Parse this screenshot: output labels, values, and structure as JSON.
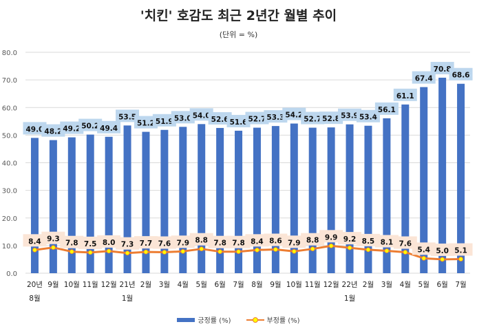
{
  "chart_data": {
    "type": "bar",
    "title": "'치킨' 호감도 최근 2년간 월별 추이",
    "subtitle": "(단위 = %)",
    "categories": [
      [
        "20년",
        "8월"
      ],
      [
        "9월"
      ],
      [
        "10월"
      ],
      [
        "11월"
      ],
      [
        "12월"
      ],
      [
        "21년",
        "1월"
      ],
      [
        "2월"
      ],
      [
        "3월"
      ],
      [
        "4월"
      ],
      [
        "5월"
      ],
      [
        "6월"
      ],
      [
        "7월"
      ],
      [
        "8월"
      ],
      [
        "9월"
      ],
      [
        "10월"
      ],
      [
        "11월"
      ],
      [
        "12월"
      ],
      [
        "22년",
        "1월"
      ],
      [
        "2월"
      ],
      [
        "3월"
      ],
      [
        "4월"
      ],
      [
        "5월"
      ],
      [
        "6월"
      ],
      [
        "7월"
      ]
    ],
    "series": [
      {
        "name": "긍정률 (%)",
        "type": "bar",
        "color": "#4472c4",
        "label_bg": "#bdd7ee",
        "values": [
          49.0,
          48.2,
          49.2,
          50.2,
          49.4,
          53.5,
          51.2,
          51.9,
          53.0,
          54.0,
          52.6,
          51.6,
          52.7,
          53.3,
          54.2,
          52.7,
          52.8,
          53.9,
          53.4,
          56.1,
          61.1,
          67.4,
          70.8,
          68.6
        ]
      },
      {
        "name": "부정률 (%)",
        "type": "line",
        "color": "#ed7d31",
        "marker": "#ffff00",
        "label_bg": "#fbe5d6",
        "values": [
          8.4,
          9.3,
          7.8,
          7.5,
          8.0,
          7.3,
          7.7,
          7.6,
          7.9,
          8.8,
          7.8,
          7.8,
          8.4,
          8.6,
          7.9,
          8.8,
          9.9,
          9.2,
          8.5,
          8.1,
          7.6,
          5.4,
          5.0,
          5.1
        ]
      }
    ],
    "ylim": [
      0,
      80
    ],
    "yticks": [
      "0.0",
      "10.0",
      "20.0",
      "30.0",
      "40.0",
      "50.0",
      "60.0",
      "70.0",
      "80.0"
    ],
    "grid": true,
    "legend": "bottom"
  }
}
